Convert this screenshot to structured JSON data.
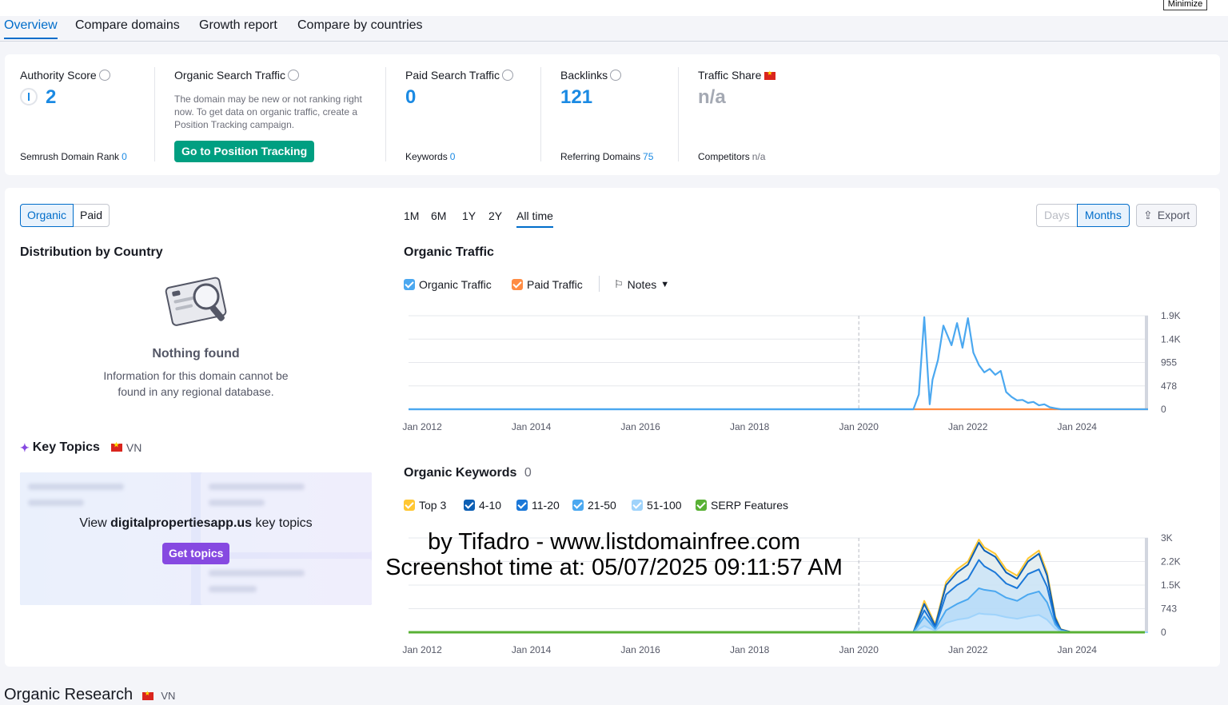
{
  "window": {
    "minimize_label": "Minimize"
  },
  "tabs": [
    {
      "label": "Overview",
      "active": true
    },
    {
      "label": "Compare domains"
    },
    {
      "label": "Growth report"
    },
    {
      "label": "Compare by countries"
    }
  ],
  "metrics": {
    "authority": {
      "label": "Authority Score",
      "value": "2",
      "sub_label": "Semrush Domain Rank",
      "sub_value": "0"
    },
    "organic": {
      "label": "Organic Search Traffic",
      "desc": "The domain may be new or not ranking right now. To get data on organic traffic, create a Position Tracking campaign.",
      "button": "Go to Position Tracking"
    },
    "paid": {
      "label": "Paid Search Traffic",
      "value": "0",
      "sub_label": "Keywords",
      "sub_value": "0"
    },
    "backlinks": {
      "label": "Backlinks",
      "value": "121",
      "sub_label": "Referring Domains",
      "sub_value": "75"
    },
    "traffic_share": {
      "label": "Traffic Share",
      "value": "n/a",
      "sub_label": "Competitors",
      "sub_value": "n/a"
    }
  },
  "toggle": {
    "organic": "Organic",
    "paid": "Paid"
  },
  "distribution": {
    "title": "Distribution by Country",
    "empty_title": "Nothing found",
    "empty_desc": "Information for this domain cannot be found in any regional database."
  },
  "key_topics": {
    "title": "Key Topics",
    "country": "VN",
    "view_prefix": "View",
    "domain": "digitalpropertiesapp.us",
    "view_suffix": "key topics",
    "button": "Get topics"
  },
  "periods": [
    "1M",
    "6M",
    "1Y",
    "2Y",
    "All time"
  ],
  "granularity": {
    "days": "Days",
    "months": "Months"
  },
  "export_label": "Export",
  "traffic_section": {
    "title": "Organic Traffic",
    "legend_organic": "Organic Traffic",
    "legend_paid": "Paid Traffic",
    "notes": "Notes"
  },
  "keywords_section": {
    "title": "Organic Keywords",
    "count": "0",
    "legend": [
      {
        "label": "Top 3",
        "color": "#ffc733"
      },
      {
        "label": "4-10",
        "color": "#0d5fb5"
      },
      {
        "label": "11-20",
        "color": "#1b78d8"
      },
      {
        "label": "21-50",
        "color": "#4ba8f0"
      },
      {
        "label": "51-100",
        "color": "#9fd3fb"
      },
      {
        "label": "SERP Features",
        "color": "#59b135"
      }
    ]
  },
  "chart_data": [
    {
      "type": "line",
      "title": "Organic Traffic",
      "x_ticks": [
        "Jan 2012",
        "Jan 2014",
        "Jan 2016",
        "Jan 2018",
        "Jan 2020",
        "Jan 2022",
        "Jan 2024"
      ],
      "y_ticks": [
        "0",
        "478",
        "955",
        "1.4K",
        "1.9K"
      ],
      "ylim": [
        0,
        1900
      ],
      "xlim": [
        2011.75,
        2025.3
      ],
      "series": [
        {
          "name": "Organic Traffic",
          "color": "#4ba8f0",
          "x": [
            2011.75,
            2021.0,
            2021.1,
            2021.2,
            2021.3,
            2021.35,
            2021.45,
            2021.55,
            2021.7,
            2021.8,
            2021.9,
            2022.0,
            2022.1,
            2022.2,
            2022.3,
            2022.4,
            2022.5,
            2022.6,
            2022.7,
            2022.8,
            2022.9,
            2023.0,
            2023.1,
            2023.2,
            2023.3,
            2023.4,
            2023.5,
            2023.6,
            2023.7,
            2023.8,
            2025.3
          ],
          "y": [
            0,
            0,
            300,
            1870,
            100,
            600,
            1000,
            1700,
            1300,
            1750,
            1250,
            1850,
            1150,
            900,
            750,
            820,
            700,
            780,
            350,
            250,
            180,
            190,
            130,
            150,
            80,
            100,
            40,
            20,
            0,
            0,
            0
          ]
        },
        {
          "name": "Paid Traffic",
          "color": "#ff8c43",
          "x": [
            2021.0,
            2025.3
          ],
          "y": [
            0,
            0
          ]
        }
      ]
    },
    {
      "type": "area",
      "title": "Organic Keywords",
      "x_ticks": [
        "Jan 2012",
        "Jan 2014",
        "Jan 2016",
        "Jan 2018",
        "Jan 2020",
        "Jan 2022",
        "Jan 2024"
      ],
      "y_ticks": [
        "0",
        "743",
        "1.5K",
        "2.2K",
        "3K"
      ],
      "ylim": [
        0,
        3000
      ],
      "xlim": [
        2011.75,
        2025.3
      ],
      "x": [
        2011.75,
        2021.0,
        2021.2,
        2021.4,
        2021.6,
        2021.8,
        2022.0,
        2022.2,
        2022.3,
        2022.5,
        2022.7,
        2022.9,
        2023.1,
        2023.3,
        2023.45,
        2023.6,
        2023.7,
        2023.9,
        2025.3
      ],
      "series": [
        {
          "name": "Top 3",
          "color": "#ffc733",
          "values": [
            0,
            0,
            1000,
            250,
            1600,
            2000,
            2250,
            2950,
            2700,
            2500,
            2000,
            1800,
            2350,
            2600,
            1900,
            500,
            100,
            0,
            0
          ]
        },
        {
          "name": "4-10",
          "color": "#0d5fb5",
          "values": [
            0,
            0,
            900,
            200,
            1500,
            1900,
            2150,
            2850,
            2600,
            2400,
            1900,
            1700,
            2250,
            2500,
            1800,
            450,
            90,
            0,
            0
          ]
        },
        {
          "name": "11-20",
          "color": "#1b78d8",
          "values": [
            0,
            0,
            700,
            150,
            1200,
            1500,
            1700,
            2300,
            2100,
            1900,
            1550,
            1400,
            1850,
            2000,
            1450,
            350,
            70,
            0,
            0
          ]
        },
        {
          "name": "21-50",
          "color": "#4ba8f0",
          "values": [
            0,
            0,
            500,
            100,
            700,
            900,
            1050,
            1400,
            1350,
            1300,
            1100,
            1000,
            1200,
            1300,
            950,
            250,
            50,
            0,
            0
          ]
        },
        {
          "name": "51-100",
          "color": "#9fd3fb",
          "values": [
            0,
            0,
            200,
            50,
            300,
            400,
            450,
            600,
            580,
            560,
            480,
            430,
            500,
            550,
            400,
            120,
            30,
            0,
            0
          ]
        }
      ]
    }
  ],
  "watermark": {
    "line1": "by Tifadro - www.listdomainfree.com",
    "line2": "Screenshot time at: 05/07/2025 09:11:57 AM"
  },
  "bottom": {
    "title": "Organic Research",
    "country": "VN"
  }
}
